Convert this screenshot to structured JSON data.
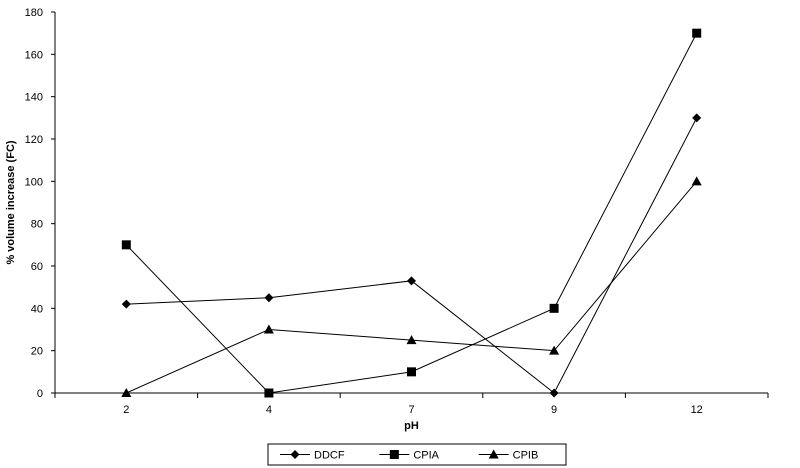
{
  "chart_data": {
    "type": "line",
    "title": "",
    "xlabel": "pH",
    "ylabel": "% volume increase (FC)",
    "categories": [
      "2",
      "4",
      "7",
      "9",
      "12"
    ],
    "ylim": [
      0,
      180
    ],
    "yticks": [
      0,
      20,
      40,
      60,
      80,
      100,
      120,
      140,
      160,
      180
    ],
    "grid": false,
    "legend_position": "bottom",
    "series": [
      {
        "name": "DDCF",
        "marker": "diamond",
        "color": "#000000",
        "values": [
          42,
          45,
          53,
          0,
          130
        ]
      },
      {
        "name": "CPIA",
        "marker": "square",
        "color": "#000000",
        "values": [
          70,
          0,
          10,
          40,
          170
        ]
      },
      {
        "name": "CPIB",
        "marker": "triangle",
        "color": "#000000",
        "values": [
          0,
          30,
          25,
          20,
          100
        ]
      }
    ]
  }
}
